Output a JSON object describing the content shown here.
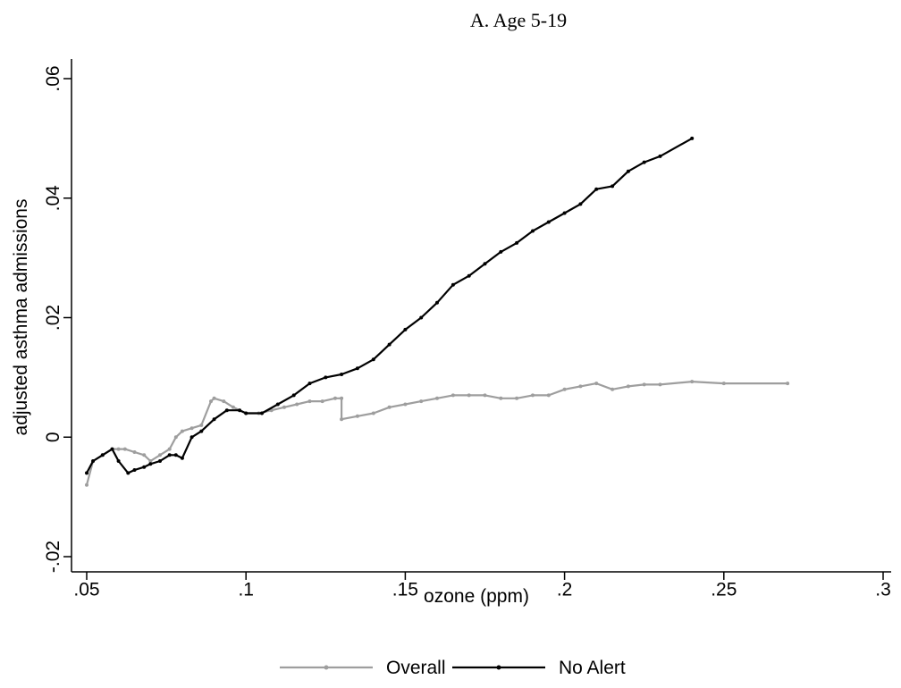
{
  "chart_data": {
    "type": "line",
    "title": "A. Age 5-19",
    "xlabel": "ozone (ppm)",
    "ylabel": "adjusted asthma admissions",
    "xlim": [
      0.05,
      0.3
    ],
    "ylim": [
      -0.02,
      0.06
    ],
    "x_ticks": [
      0.05,
      0.1,
      0.15,
      0.2,
      0.25,
      0.3
    ],
    "x_tick_labels": [
      ".05",
      ".1",
      ".15",
      ".2",
      ".25",
      ".3"
    ],
    "y_ticks": [
      -0.02,
      0,
      0.02,
      0.04,
      0.06
    ],
    "y_tick_labels": [
      "-.02",
      "0",
      ".02",
      ".04",
      ".06"
    ],
    "grid": false,
    "legend_position": "bottom",
    "series": [
      {
        "name": "Overall",
        "color": "#9e9e9e",
        "marker": "dot",
        "x": [
          0.05,
          0.052,
          0.055,
          0.058,
          0.06,
          0.062,
          0.065,
          0.068,
          0.07,
          0.073,
          0.076,
          0.078,
          0.08,
          0.083,
          0.086,
          0.089,
          0.09,
          0.093,
          0.096,
          0.1,
          0.104,
          0.108,
          0.112,
          0.116,
          0.12,
          0.124,
          0.128,
          0.13,
          0.13,
          0.135,
          0.14,
          0.145,
          0.15,
          0.155,
          0.16,
          0.165,
          0.17,
          0.175,
          0.18,
          0.185,
          0.19,
          0.195,
          0.2,
          0.205,
          0.21,
          0.215,
          0.22,
          0.225,
          0.23,
          0.24,
          0.25,
          0.27
        ],
        "y": [
          -0.008,
          -0.004,
          -0.003,
          -0.002,
          -0.002,
          -0.002,
          -0.0025,
          -0.003,
          -0.004,
          -0.003,
          -0.002,
          0.0,
          0.001,
          0.0015,
          0.002,
          0.006,
          0.0065,
          0.006,
          0.005,
          0.004,
          0.004,
          0.0045,
          0.005,
          0.0055,
          0.006,
          0.006,
          0.0065,
          0.0065,
          0.003,
          0.0035,
          0.004,
          0.005,
          0.0055,
          0.006,
          0.0065,
          0.007,
          0.007,
          0.007,
          0.0065,
          0.0065,
          0.007,
          0.007,
          0.008,
          0.0085,
          0.009,
          0.008,
          0.0085,
          0.0088,
          0.0088,
          0.0093,
          0.009,
          0.009
        ]
      },
      {
        "name": "No Alert",
        "color": "#000000",
        "marker": "dot",
        "x": [
          0.05,
          0.052,
          0.055,
          0.058,
          0.06,
          0.063,
          0.065,
          0.068,
          0.07,
          0.073,
          0.076,
          0.078,
          0.08,
          0.083,
          0.086,
          0.09,
          0.094,
          0.098,
          0.1,
          0.105,
          0.11,
          0.115,
          0.12,
          0.125,
          0.13,
          0.135,
          0.14,
          0.145,
          0.15,
          0.155,
          0.16,
          0.165,
          0.17,
          0.175,
          0.18,
          0.185,
          0.19,
          0.195,
          0.2,
          0.205,
          0.21,
          0.215,
          0.22,
          0.225,
          0.23,
          0.24
        ],
        "y": [
          -0.006,
          -0.004,
          -0.003,
          -0.002,
          -0.004,
          -0.006,
          -0.0055,
          -0.005,
          -0.0045,
          -0.004,
          -0.003,
          -0.003,
          -0.0035,
          0.0,
          0.001,
          0.003,
          0.0045,
          0.0045,
          0.004,
          0.004,
          0.0055,
          0.007,
          0.009,
          0.01,
          0.0105,
          0.0115,
          0.013,
          0.0155,
          0.018,
          0.02,
          0.0225,
          0.0255,
          0.027,
          0.029,
          0.031,
          0.0325,
          0.0345,
          0.036,
          0.0375,
          0.039,
          0.0415,
          0.042,
          0.0445,
          0.046,
          0.047,
          0.05
        ]
      }
    ]
  }
}
